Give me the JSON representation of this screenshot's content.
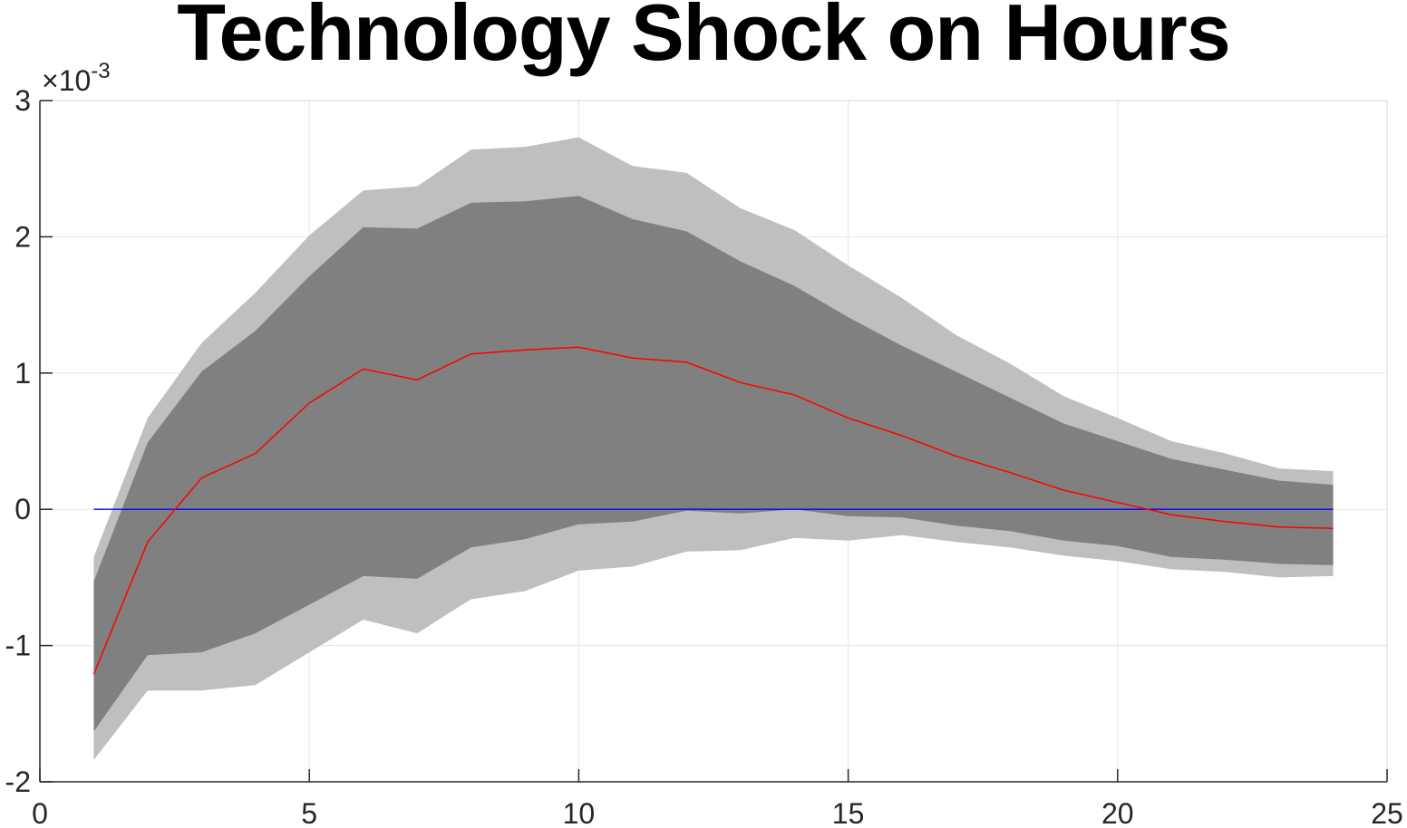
{
  "chart_data": {
    "type": "area",
    "title": "Technology Shock on Hours",
    "xlabel": "",
    "ylabel": "",
    "y_multiplier_label": "×10",
    "y_multiplier_exponent": "-3",
    "xlim": [
      0,
      25
    ],
    "ylim": [
      -2,
      3
    ],
    "x_ticks": [
      "0",
      "5",
      "10",
      "15",
      "20",
      "25"
    ],
    "y_ticks": [
      "-2",
      "-1",
      "0",
      "1",
      "2",
      "3"
    ],
    "grid": true,
    "colors": {
      "outer_band": "#bfbfbf",
      "inner_band": "#808080",
      "median_line": "#ff0000",
      "zero_line": "#0000ff",
      "grid": "#e6e6e6",
      "axis": "#262626"
    },
    "x": [
      1,
      2,
      3,
      4,
      5,
      6,
      7,
      8,
      9,
      10,
      11,
      12,
      13,
      14,
      15,
      16,
      17,
      18,
      19,
      20,
      21,
      22,
      23,
      24
    ],
    "series": [
      {
        "role": "outer_upper",
        "values": [
          -0.35,
          0.67,
          1.22,
          1.59,
          2.01,
          2.34,
          2.37,
          2.64,
          2.66,
          2.73,
          2.52,
          2.47,
          2.21,
          2.05,
          1.79,
          1.55,
          1.28,
          1.07,
          0.83,
          0.67,
          0.5,
          0.41,
          0.3,
          0.28
        ]
      },
      {
        "role": "outer_lower",
        "values": [
          -1.84,
          -1.33,
          -1.33,
          -1.29,
          -1.05,
          -0.81,
          -0.91,
          -0.66,
          -0.6,
          -0.45,
          -0.42,
          -0.31,
          -0.3,
          -0.21,
          -0.23,
          -0.19,
          -0.24,
          -0.28,
          -0.34,
          -0.38,
          -0.44,
          -0.46,
          -0.5,
          -0.49
        ]
      },
      {
        "role": "inner_upper",
        "values": [
          -0.53,
          0.49,
          1.01,
          1.31,
          1.71,
          2.07,
          2.06,
          2.25,
          2.26,
          2.3,
          2.13,
          2.04,
          1.82,
          1.64,
          1.41,
          1.2,
          1.01,
          0.82,
          0.63,
          0.5,
          0.37,
          0.29,
          0.21,
          0.18
        ]
      },
      {
        "role": "inner_lower",
        "values": [
          -1.63,
          -1.07,
          -1.05,
          -0.91,
          -0.7,
          -0.49,
          -0.51,
          -0.28,
          -0.22,
          -0.11,
          -0.09,
          -0.01,
          -0.03,
          0.0,
          -0.05,
          -0.06,
          -0.12,
          -0.16,
          -0.23,
          -0.27,
          -0.35,
          -0.37,
          -0.4,
          -0.41
        ]
      },
      {
        "role": "median",
        "values": [
          -1.21,
          -0.24,
          0.23,
          0.41,
          0.78,
          1.03,
          0.95,
          1.14,
          1.17,
          1.19,
          1.11,
          1.08,
          0.93,
          0.84,
          0.67,
          0.54,
          0.39,
          0.27,
          0.14,
          0.05,
          -0.04,
          -0.09,
          -0.13,
          -0.14
        ]
      },
      {
        "role": "zero_line",
        "values": [
          0,
          0,
          0,
          0,
          0,
          0,
          0,
          0,
          0,
          0,
          0,
          0,
          0,
          0,
          0,
          0,
          0,
          0,
          0,
          0,
          0,
          0,
          0,
          0
        ]
      }
    ]
  }
}
